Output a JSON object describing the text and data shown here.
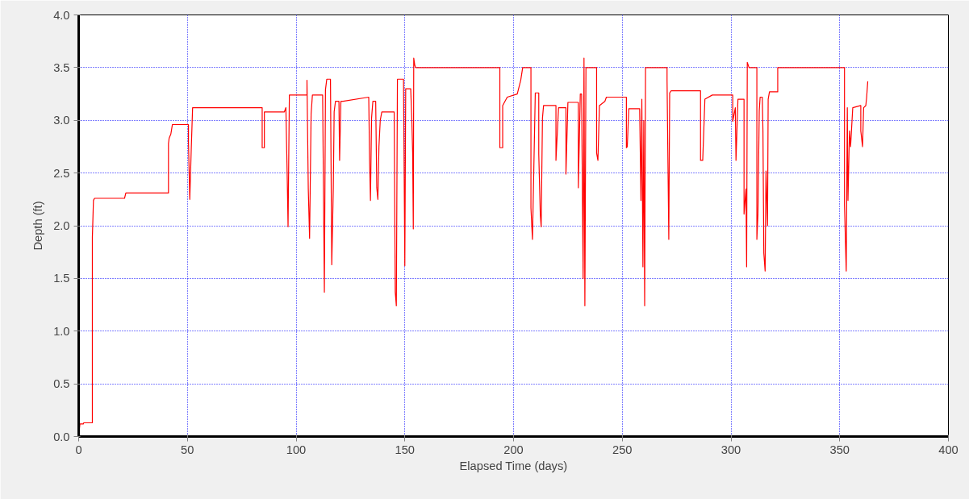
{
  "chart_data": {
    "type": "line",
    "xlabel": "Elapsed Time (days)",
    "ylabel": "Depth (ft)",
    "xlim": [
      0,
      400
    ],
    "xticks": [
      0,
      50,
      100,
      150,
      200,
      250,
      300,
      350,
      400
    ],
    "ylim": [
      0,
      4.0
    ],
    "yticks": [
      {
        "value": 0,
        "label": "0.0"
      },
      {
        "value": 0.5,
        "label": "0.5"
      },
      {
        "value": 1,
        "label": "1.0"
      },
      {
        "value": 1.5,
        "label": "1.5"
      },
      {
        "value": 2,
        "label": "2.0"
      },
      {
        "value": 2.5,
        "label": "2.5"
      },
      {
        "value": 3,
        "label": "3.0"
      },
      {
        "value": 3.5,
        "label": "3.5"
      },
      {
        "value": 4,
        "label": "4.0"
      }
    ],
    "grid": true,
    "marker": "none",
    "line_style": "solid",
    "series": [
      {
        "color": "#ff0000",
        "x": [
          0,
          0.6,
          2.2,
          2.3,
          6.3,
          6.3,
          6.8,
          7.3,
          21.1,
          21.7,
          41.3,
          41.3,
          41.6,
          42.4,
          43.1,
          50.5,
          50.5,
          51.1,
          51.8,
          52.4,
          84.4,
          84.4,
          85.4,
          85.4,
          94.6,
          95.3,
          95.9,
          96.3,
          96.9,
          105.0,
          105.0,
          105.6,
          106.2,
          106.9,
          107.5,
          112.2,
          113.0,
          113.5,
          114.1,
          115.8,
          116.4,
          117.1,
          117.5,
          118.1,
          119.7,
          120.0,
          120.6,
          121.6,
          133.4,
          133.8,
          134.2,
          134.7,
          135.3,
          136.6,
          137.1,
          137.6,
          138.1,
          138.7,
          139.4,
          145.1,
          145.6,
          146.1,
          146.6,
          149.4,
          150.0,
          150.4,
          152.7,
          153.2,
          153.6,
          153.9,
          154.1,
          154.6,
          155.0,
          193.7,
          193.7,
          195.0,
          195.0,
          197.1,
          201.7,
          203.3,
          204.2,
          208.0,
          208.0,
          208.7,
          210.0,
          211.6,
          211.6,
          212.3,
          212.7,
          213.3,
          213.8,
          219.5,
          219.5,
          220.7,
          224.1,
          224.1,
          225.0,
          229.8,
          229.8,
          230.7,
          231.3,
          232.0,
          232.4,
          232.8,
          233.3,
          238.2,
          238.2,
          238.8,
          239.5,
          242.0,
          242.7,
          251.9,
          251.9,
          252.3,
          253.0,
          258.0,
          258.6,
          259.0,
          259.5,
          259.9,
          260.3,
          260.7,
          270.6,
          270.6,
          271.4,
          271.8,
          272.5,
          286.0,
          286.0,
          287.0,
          288.0,
          291.4,
          300.8,
          300.8,
          302.0,
          302.3,
          303.2,
          306.0,
          306.0,
          306.9,
          307.2,
          307.5,
          308.3,
          311.9,
          311.9,
          312.4,
          313.0,
          313.4,
          314.4,
          314.7,
          315.1,
          315.7,
          316.1,
          316.8,
          317.1,
          317.7,
          321.5,
          321.5,
          352.2,
          352.2,
          353.0,
          353.5,
          353.8,
          354.5,
          355.0,
          356.0,
          359.7,
          359.7,
          360.5,
          361.0,
          362.0,
          362.4,
          362.9
        ],
        "values": [
          0,
          0.12,
          0.12,
          0.13,
          0.13,
          1.89,
          2.24,
          2.26,
          2.26,
          2.31,
          2.31,
          2.78,
          2.83,
          2.87,
          2.96,
          2.96,
          2.79,
          2.25,
          2.74,
          3.12,
          3.12,
          2.74,
          2.74,
          3.08,
          3.08,
          3.12,
          2.48,
          1.99,
          3.24,
          3.24,
          3.38,
          2.35,
          1.88,
          3.06,
          3.24,
          3.24,
          1.37,
          3.29,
          3.39,
          3.39,
          1.63,
          2.35,
          3.08,
          3.18,
          3.18,
          2.62,
          3.18,
          3.18,
          3.22,
          2.62,
          2.24,
          3.02,
          3.18,
          3.18,
          2.36,
          2.25,
          2.75,
          3.0,
          3.08,
          3.08,
          1.37,
          1.24,
          3.39,
          3.39,
          1.62,
          3.3,
          3.3,
          3.02,
          2.69,
          1.97,
          3.59,
          3.52,
          3.5,
          3.5,
          2.74,
          2.74,
          3.14,
          3.22,
          3.25,
          3.38,
          3.5,
          3.5,
          2.17,
          1.87,
          3.26,
          3.26,
          2.68,
          2.11,
          1.99,
          3.02,
          3.14,
          3.14,
          2.62,
          3.12,
          3.12,
          2.49,
          3.17,
          3.17,
          2.36,
          3.25,
          3.25,
          1.5,
          3.59,
          1.24,
          3.5,
          3.5,
          2.69,
          2.62,
          3.14,
          3.18,
          3.22,
          3.22,
          2.74,
          2.75,
          3.11,
          3.11,
          2.24,
          3.2,
          1.61,
          3.0,
          1.24,
          3.5,
          3.5,
          3.38,
          1.87,
          3.26,
          3.28,
          3.28,
          2.62,
          2.62,
          3.2,
          3.24,
          3.24,
          2.99,
          3.12,
          2.62,
          3.2,
          3.2,
          2.11,
          2.35,
          1.61,
          3.55,
          3.5,
          3.5,
          1.87,
          2.11,
          3.09,
          3.22,
          3.22,
          2.9,
          1.74,
          1.57,
          2.52,
          2.0,
          3.2,
          3.27,
          3.27,
          3.5,
          3.5,
          2.2,
          1.57,
          3.12,
          2.24,
          2.9,
          2.75,
          3.12,
          3.14,
          2.9,
          2.75,
          3.12,
          3.14,
          3.22,
          3.37
        ]
      }
    ]
  }
}
